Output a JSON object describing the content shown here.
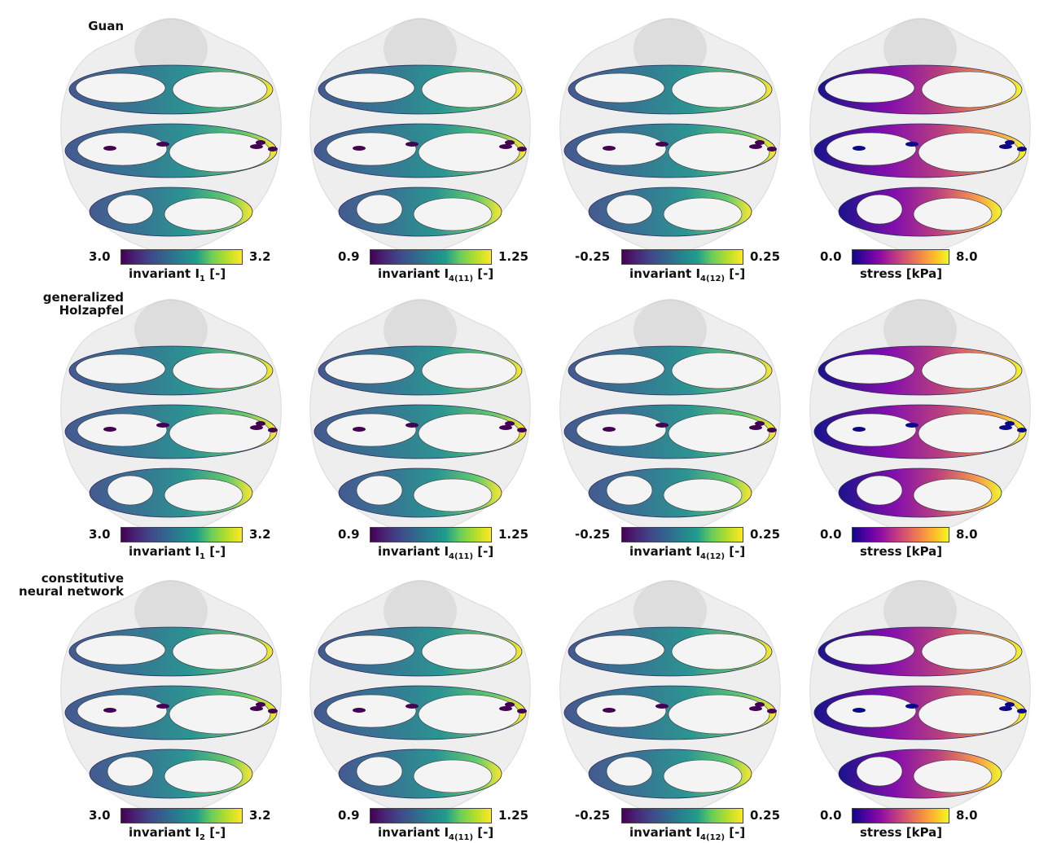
{
  "rows": [
    {
      "label_lines": [
        "Guan"
      ]
    },
    {
      "label_lines": [
        "generalized",
        "Holzapfel"
      ]
    },
    {
      "label_lines": [
        "constitutive",
        "neural network"
      ]
    }
  ],
  "colorbars": [
    [
      {
        "min": "3.0",
        "max": "3.2",
        "title": "invariant I",
        "sub": "1",
        "unit": " [-]",
        "cmap": "viridis"
      },
      {
        "min": "0.9",
        "max": "1.25",
        "title": "invariant I",
        "sub": "4(11)",
        "unit": " [-]",
        "cmap": "viridis"
      },
      {
        "min": "-0.25",
        "max": "0.25",
        "title": "invariant I",
        "sub": "4(12)",
        "unit": " [-]",
        "cmap": "viridis"
      },
      {
        "min": "0.0",
        "max": "8.0",
        "title": "stress [kPa]",
        "sub": "",
        "unit": "",
        "cmap": "plasma"
      }
    ],
    [
      {
        "min": "3.0",
        "max": "3.2",
        "title": "invariant I",
        "sub": "1",
        "unit": " [-]",
        "cmap": "viridis"
      },
      {
        "min": "0.9",
        "max": "1.25",
        "title": "invariant I",
        "sub": "4(11)",
        "unit": " [-]",
        "cmap": "viridis"
      },
      {
        "min": "-0.25",
        "max": "0.25",
        "title": "invariant I",
        "sub": "4(12)",
        "unit": " [-]",
        "cmap": "viridis"
      },
      {
        "min": "0.0",
        "max": "8.0",
        "title": "stress [kPa]",
        "sub": "",
        "unit": "",
        "cmap": "plasma"
      }
    ],
    [
      {
        "min": "3.0",
        "max": "3.2",
        "title": "invariant I",
        "sub": "2",
        "unit": " [-]",
        "cmap": "viridis"
      },
      {
        "min": "0.9",
        "max": "1.25",
        "title": "invariant I",
        "sub": "4(11)",
        "unit": " [-]",
        "cmap": "viridis"
      },
      {
        "min": "-0.25",
        "max": "0.25",
        "title": "invariant I",
        "sub": "4(12)",
        "unit": " [-]",
        "cmap": "viridis"
      },
      {
        "min": "0.0",
        "max": "8.0",
        "title": "stress [kPa]",
        "sub": "",
        "unit": "",
        "cmap": "plasma"
      }
    ]
  ],
  "colors": {
    "viridis_low": "#440154",
    "viridis_mid": "#21908d",
    "viridis_high": "#fde725",
    "plasma_low": "#0d0887",
    "plasma_mid": "#b63679",
    "plasma_high": "#f0f921",
    "heart_shadow": "#d9d9d9"
  }
}
